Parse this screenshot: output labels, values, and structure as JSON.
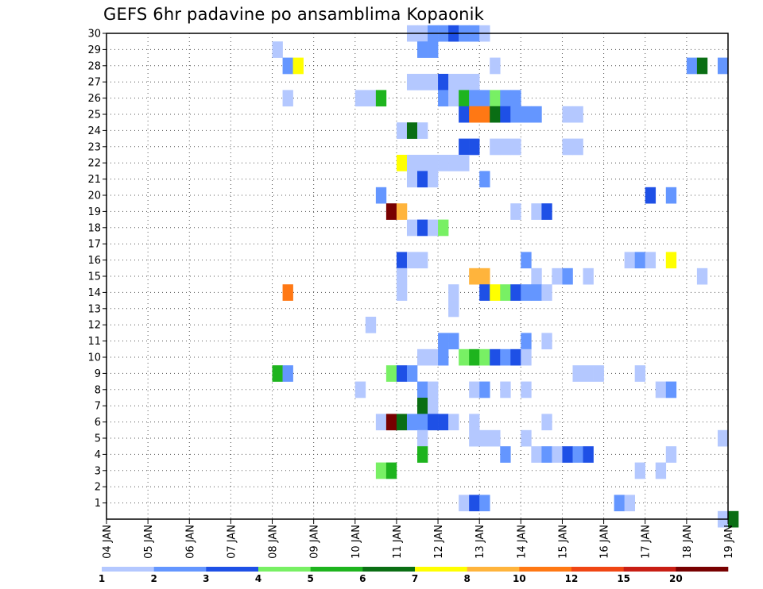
{
  "chart_data": {
    "type": "heatmap",
    "title": "GEFS 6hr padavine po ansamblima Kopaonik",
    "xlabel": "",
    "ylabel": "",
    "x_tick_labels": [
      "04 JAN",
      "05 JAN",
      "06 JAN",
      "07 JAN",
      "08 JAN",
      "09 JAN",
      "10 JAN",
      "11 JAN",
      "12 JAN",
      "13 JAN",
      "14 JAN",
      "15 JAN",
      "16 JAN",
      "17 JAN",
      "18 JAN",
      "19 JAN"
    ],
    "x_steps_per_day": 4,
    "y_range": [
      1,
      30
    ],
    "y_tick_labels": [
      "1",
      "2",
      "3",
      "4",
      "5",
      "6",
      "7",
      "8",
      "9",
      "10",
      "11",
      "12",
      "13",
      "14",
      "15",
      "16",
      "17",
      "18",
      "19",
      "20",
      "21",
      "22",
      "23",
      "24",
      "25",
      "26",
      "27",
      "28",
      "29",
      "30"
    ],
    "grid": true,
    "legend_position": "bottom",
    "legend": {
      "labels": [
        "1",
        "2",
        "3",
        "4",
        "5",
        "6",
        "7",
        "8",
        "10",
        "12",
        "15",
        "20"
      ],
      "colors": [
        "#b4c8ff",
        "#6496ff",
        "#1e50e6",
        "#78f064",
        "#1eb41e",
        "#0a6e14",
        "#ffff00",
        "#ffb43c",
        "#ff7814",
        "#f04614",
        "#c81e14",
        "#780000"
      ]
    },
    "cells_note": "each cell: [ensemble_member, step_index_from_04_JAN_00Z, color_class]",
    "cells": [
      [
        30,
        29,
        0
      ],
      [
        30,
        30,
        0
      ],
      [
        30,
        31,
        1
      ],
      [
        30,
        32,
        1
      ],
      [
        30,
        33,
        2
      ],
      [
        30,
        34,
        1
      ],
      [
        30,
        35,
        1
      ],
      [
        30,
        36,
        0
      ],
      [
        29,
        16,
        0
      ],
      [
        29,
        30,
        1
      ],
      [
        29,
        31,
        1
      ],
      [
        28,
        17,
        1
      ],
      [
        28,
        18,
        6
      ],
      [
        28,
        37,
        0
      ],
      [
        28,
        56,
        1
      ],
      [
        28,
        57,
        5
      ],
      [
        28,
        59,
        1
      ],
      [
        27,
        29,
        0
      ],
      [
        27,
        30,
        0
      ],
      [
        27,
        31,
        0
      ],
      [
        27,
        32,
        2
      ],
      [
        27,
        33,
        0
      ],
      [
        27,
        34,
        0
      ],
      [
        27,
        35,
        0
      ],
      [
        26,
        17,
        0
      ],
      [
        26,
        24,
        0
      ],
      [
        26,
        25,
        0
      ],
      [
        26,
        26,
        4
      ],
      [
        26,
        32,
        1
      ],
      [
        26,
        33,
        0
      ],
      [
        26,
        34,
        4
      ],
      [
        26,
        35,
        1
      ],
      [
        26,
        36,
        1
      ],
      [
        26,
        37,
        3
      ],
      [
        26,
        38,
        1
      ],
      [
        26,
        39,
        1
      ],
      [
        25,
        34,
        2
      ],
      [
        25,
        35,
        8
      ],
      [
        25,
        36,
        8
      ],
      [
        25,
        37,
        5
      ],
      [
        25,
        38,
        2
      ],
      [
        25,
        39,
        1
      ],
      [
        25,
        40,
        1
      ],
      [
        25,
        41,
        1
      ],
      [
        25,
        44,
        0
      ],
      [
        25,
        45,
        0
      ],
      [
        24,
        28,
        0
      ],
      [
        24,
        29,
        5
      ],
      [
        24,
        30,
        0
      ],
      [
        23,
        34,
        2
      ],
      [
        23,
        35,
        2
      ],
      [
        23,
        37,
        0
      ],
      [
        23,
        38,
        0
      ],
      [
        23,
        39,
        0
      ],
      [
        23,
        44,
        0
      ],
      [
        23,
        45,
        0
      ],
      [
        22,
        28,
        6
      ],
      [
        22,
        29,
        0
      ],
      [
        22,
        30,
        0
      ],
      [
        22,
        31,
        0
      ],
      [
        22,
        32,
        0
      ],
      [
        22,
        33,
        0
      ],
      [
        22,
        34,
        0
      ],
      [
        21,
        29,
        0
      ],
      [
        21,
        30,
        2
      ],
      [
        21,
        31,
        0
      ],
      [
        21,
        36,
        1
      ],
      [
        20,
        26,
        1
      ],
      [
        20,
        52,
        2
      ],
      [
        20,
        54,
        1
      ],
      [
        19,
        27,
        11
      ],
      [
        19,
        28,
        7
      ],
      [
        19,
        39,
        0
      ],
      [
        19,
        41,
        0
      ],
      [
        19,
        42,
        2
      ],
      [
        18,
        29,
        0
      ],
      [
        18,
        30,
        2
      ],
      [
        18,
        31,
        0
      ],
      [
        18,
        32,
        3
      ],
      [
        16,
        28,
        2
      ],
      [
        16,
        29,
        0
      ],
      [
        16,
        30,
        0
      ],
      [
        16,
        40,
        1
      ],
      [
        16,
        50,
        0
      ],
      [
        16,
        51,
        1
      ],
      [
        16,
        52,
        0
      ],
      [
        16,
        54,
        6
      ],
      [
        15,
        28,
        0
      ],
      [
        15,
        35,
        7
      ],
      [
        15,
        36,
        7
      ],
      [
        15,
        41,
        0
      ],
      [
        15,
        43,
        0
      ],
      [
        15,
        44,
        1
      ],
      [
        15,
        46,
        0
      ],
      [
        15,
        57,
        0
      ],
      [
        14,
        17,
        8
      ],
      [
        14,
        28,
        0
      ],
      [
        14,
        33,
        0
      ],
      [
        14,
        36,
        2
      ],
      [
        14,
        37,
        6
      ],
      [
        14,
        38,
        3
      ],
      [
        14,
        39,
        2
      ],
      [
        14,
        40,
        1
      ],
      [
        14,
        41,
        1
      ],
      [
        14,
        42,
        0
      ],
      [
        13,
        33,
        0
      ],
      [
        12,
        25,
        0
      ],
      [
        11,
        32,
        1
      ],
      [
        11,
        33,
        1
      ],
      [
        11,
        40,
        1
      ],
      [
        11,
        42,
        0
      ],
      [
        10,
        30,
        0
      ],
      [
        10,
        31,
        0
      ],
      [
        10,
        32,
        1
      ],
      [
        10,
        34,
        3
      ],
      [
        10,
        35,
        4
      ],
      [
        10,
        36,
        3
      ],
      [
        10,
        37,
        2
      ],
      [
        10,
        38,
        1
      ],
      [
        10,
        39,
        2
      ],
      [
        10,
        40,
        0
      ],
      [
        9,
        16,
        4
      ],
      [
        9,
        17,
        1
      ],
      [
        9,
        27,
        3
      ],
      [
        9,
        28,
        2
      ],
      [
        9,
        29,
        1
      ],
      [
        9,
        45,
        0
      ],
      [
        9,
        46,
        0
      ],
      [
        9,
        47,
        0
      ],
      [
        9,
        51,
        0
      ],
      [
        8,
        24,
        0
      ],
      [
        8,
        30,
        1
      ],
      [
        8,
        31,
        0
      ],
      [
        8,
        35,
        0
      ],
      [
        8,
        36,
        1
      ],
      [
        8,
        38,
        0
      ],
      [
        8,
        40,
        0
      ],
      [
        8,
        53,
        0
      ],
      [
        8,
        54,
        1
      ],
      [
        7,
        30,
        5
      ],
      [
        7,
        31,
        0
      ],
      [
        6,
        26,
        0
      ],
      [
        6,
        27,
        11
      ],
      [
        6,
        28,
        5
      ],
      [
        6,
        29,
        1
      ],
      [
        6,
        30,
        1
      ],
      [
        6,
        31,
        2
      ],
      [
        6,
        32,
        2
      ],
      [
        6,
        33,
        0
      ],
      [
        6,
        35,
        0
      ],
      [
        6,
        42,
        0
      ],
      [
        5,
        30,
        0
      ],
      [
        5,
        35,
        0
      ],
      [
        5,
        36,
        0
      ],
      [
        5,
        37,
        0
      ],
      [
        5,
        40,
        0
      ],
      [
        5,
        59,
        0
      ],
      [
        4,
        30,
        4
      ],
      [
        4,
        38,
        1
      ],
      [
        4,
        41,
        0
      ],
      [
        4,
        42,
        1
      ],
      [
        4,
        43,
        0
      ],
      [
        4,
        44,
        2
      ],
      [
        4,
        45,
        1
      ],
      [
        4,
        46,
        2
      ],
      [
        4,
        54,
        0
      ],
      [
        3,
        26,
        3
      ],
      [
        3,
        27,
        4
      ],
      [
        3,
        51,
        0
      ],
      [
        3,
        53,
        0
      ],
      [
        1,
        34,
        0
      ],
      [
        1,
        35,
        2
      ],
      [
        1,
        36,
        1
      ],
      [
        1,
        49,
        1
      ],
      [
        1,
        50,
        0
      ],
      [
        0,
        59,
        0
      ],
      [
        0,
        60,
        5
      ]
    ]
  }
}
